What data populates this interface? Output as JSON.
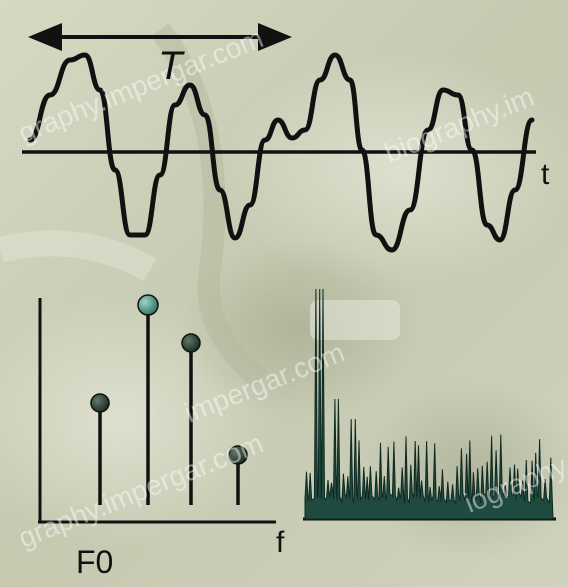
{
  "labels": {
    "period": "T",
    "time_axis": "t",
    "freq_axis": "f",
    "fundamental": "F0"
  },
  "watermarks": {
    "text_1": "graphy.impergar.com",
    "text_2": "biography.im",
    "text_3": "impergar.com",
    "text_4": "graphy.impergar.com",
    "text_5": "iography.im"
  },
  "colors": {
    "background": "#c9cdb6",
    "wave": "#111111",
    "stem_head": "#2b3a2a",
    "stem_head_highlight": "#3f7f73",
    "spectrum_fill": "#1f4a40"
  },
  "icons": {
    "period_arrow": "double-headed-arrow-icon"
  }
}
